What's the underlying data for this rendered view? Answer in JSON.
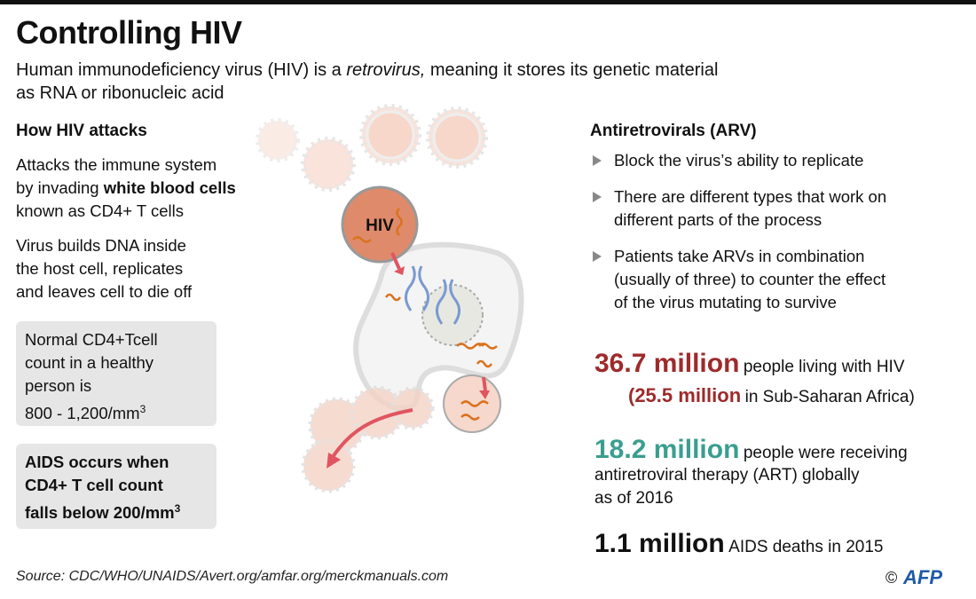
{
  "header": {
    "title": "Controlling HIV",
    "subtitle": {
      "part1": "Human immunodeficiency virus (HIV) is a",
      "italic": "retrovirus,",
      "part2": "meaning it stores its genetic material",
      "line2": "as RNA or ribonucleic acid"
    }
  },
  "left": {
    "heading": "How HIV attacks",
    "paragraph1": {
      "line1": "Attacks the immune system",
      "line2_start": "by invading",
      "line2_bold": "white blood cells",
      "line3": "known as CD4+ T cells"
    },
    "paragraph2": {
      "line1": "Virus builds DNA inside",
      "line2": "the host cell, replicates",
      "line3": "and leaves cell to die off"
    },
    "box1": {
      "line1": "Normal CD4+Tcell",
      "line2": "count in a healthy",
      "line3": "person is",
      "line4": "800 - 1,200/mm",
      "sup": "3"
    },
    "box2": {
      "line1": "AIDS occurs when",
      "line2": "CD4+ T cell count",
      "line3": "falls below 200/mm",
      "sup": "3"
    }
  },
  "illustration": {
    "label": "HIV"
  },
  "right": {
    "heading": "Antiretrovirals (ARV)",
    "bullets": [
      [
        "Block the virus’s ability to replicate"
      ],
      [
        "There are different types that work on",
        "different parts of the process"
      ],
      [
        "Patients take ARVs in combination",
        "(usually of three) to counter the effect",
        "of the virus mutating to survive"
      ]
    ],
    "stats": [
      {
        "figure": "36.7 million",
        "text": "people living with HIV",
        "sub_figure": "(25.5 million",
        "sub_text": "in Sub-Saharan Africa)"
      },
      {
        "figure": "18.2 million",
        "text": "people were receiving",
        "line2": "antiretroviral therapy (ART) globally",
        "line3": "as of 2016"
      },
      {
        "figure": "1.1 million",
        "text": "AIDS deaths in 2015"
      }
    ]
  },
  "footer": {
    "source": "Source: CDC/WHO/UNAIDS/Avert.org/amfar.org/merckmanuals.com",
    "copyright": "©",
    "agency": "AFP"
  }
}
